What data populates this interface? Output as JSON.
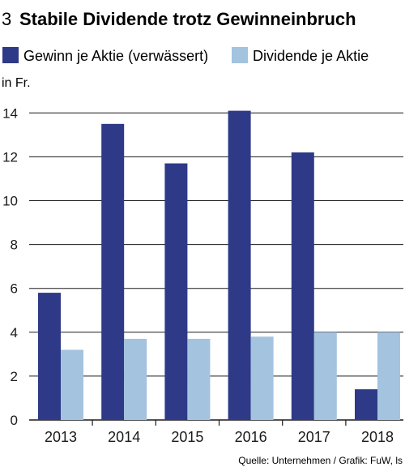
{
  "figure": {
    "number": "3",
    "source": "Quelle: Unternehmen / Grafik: FuW, ls"
  },
  "colors": {
    "series1": "#2e3a87",
    "series2": "#a3c3df",
    "grid": "#1a1a1a",
    "text": "#1a1a1a"
  },
  "chart_data": {
    "type": "bar",
    "title": "Stabile Dividende trotz Gewinneinbruch",
    "unit_label": "in Fr.",
    "xlabel": "",
    "ylabel": "",
    "categories": [
      "2013",
      "2014",
      "2015",
      "2016",
      "2017",
      "2018"
    ],
    "series": [
      {
        "name": "Gewinn je Aktie (verwässert)",
        "values": [
          5.8,
          13.5,
          11.7,
          14.1,
          12.2,
          1.4
        ]
      },
      {
        "name": "Dividende je Aktie",
        "values": [
          3.2,
          3.7,
          3.7,
          3.8,
          4.0,
          4.0
        ]
      }
    ],
    "ylim": [
      0,
      14
    ],
    "yticks": [
      0,
      2,
      4,
      6,
      8,
      10,
      12,
      14
    ],
    "grid": true,
    "legend": "top-left"
  }
}
